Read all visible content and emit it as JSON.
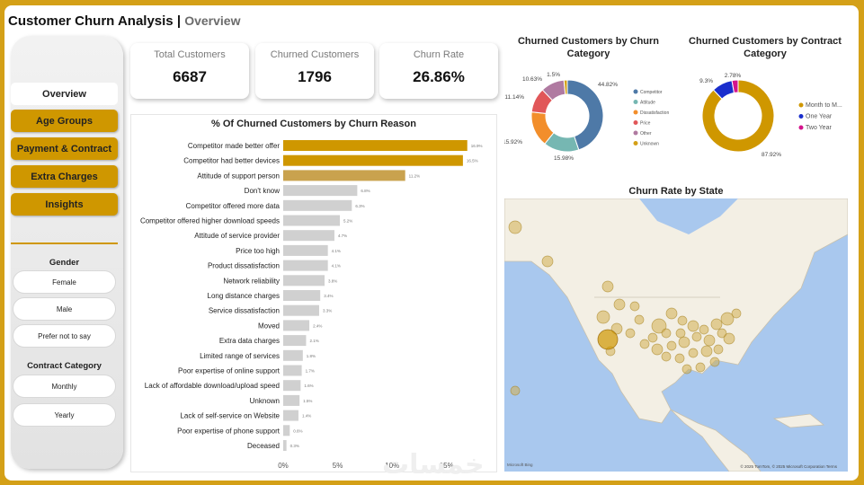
{
  "header": {
    "title": "Customer Churn Analysis",
    "separator": "|",
    "subtitle": "Overview"
  },
  "nav": {
    "overview": "Overview",
    "age_groups": "Age Groups",
    "payment_contract": "Payment & Contract",
    "extra_charges": "Extra Charges",
    "insights": "Insights"
  },
  "filters": {
    "gender_title": "Gender",
    "gender_options": [
      "Female",
      "Male",
      "Prefer not to say"
    ],
    "contract_title": "Contract Category",
    "contract_options": [
      "Monthly",
      "Yearly"
    ]
  },
  "kpis": [
    {
      "label": "Total Customers",
      "value": "6687"
    },
    {
      "label": "Churned Customers",
      "value": "1796"
    },
    {
      "label": "Churn Rate",
      "value": "26.86%"
    }
  ],
  "colors": {
    "gold": "#cf9700",
    "highlight": "#c9a24e",
    "gray_bar": "#d0d0d0",
    "water": "#a9c8ee",
    "land": "#f3efe4"
  },
  "chart_data": [
    {
      "type": "bar",
      "orientation": "horizontal",
      "title": "% Of Churned Customers by Churn Reason",
      "categories": [
        "Competitor made better offer",
        "Competitor had better devices",
        "Attitude of support person",
        "Don't know",
        "Competitor offered more data",
        "Competitor offered higher download speeds",
        "Attitude of service provider",
        "Price too high",
        "Product dissatisfaction",
        "Network reliability",
        "Long distance charges",
        "Service dissatisfaction",
        "Moved",
        "Extra data charges",
        "Limited range of services",
        "Poor expertise of online support",
        "Lack of affordable download/upload speed",
        "Unknown",
        "Lack of self-service on Website",
        "Poor expertise of phone support",
        "Deceased"
      ],
      "values": [
        16.9,
        16.5,
        11.2,
        6.8,
        6.3,
        5.2,
        4.7,
        4.1,
        4.1,
        3.8,
        3.4,
        3.3,
        2.4,
        2.1,
        1.8,
        1.7,
        1.6,
        1.5,
        1.4,
        0.6,
        0.3
      ],
      "data_labels": [
        "16.9%",
        "16.5%",
        "11.2%",
        "6.8%",
        "6.3%",
        "5.2%",
        "4.7%",
        "4.1%",
        "4.1%",
        "3.8%",
        "3.4%",
        "3.3%",
        "2.4%",
        "2.1%",
        "1.8%",
        "1.7%",
        "1.6%",
        "1.5%",
        "1.4%",
        "0.6%",
        "0.3%"
      ],
      "x_ticks": [
        "0%",
        "5%",
        "10%",
        "15%"
      ],
      "xlim": [
        0,
        17.5
      ]
    },
    {
      "type": "pie",
      "title": "Churned Customers by Churn Category",
      "categories": [
        "Competitor",
        "Attitude",
        "Dissatisfaction",
        "Price",
        "Other",
        "Unknown"
      ],
      "values": [
        44.82,
        15.98,
        15.92,
        11.14,
        10.63,
        1.5
      ],
      "labels": [
        "44.82%",
        "15.98%",
        "15.92%",
        "11.14%",
        "10.63%",
        "1.5%"
      ],
      "colors": [
        "#4e79a7",
        "#76b7b2",
        "#f28e2b",
        "#e15759",
        "#b07aa1",
        "#d4a017"
      ]
    },
    {
      "type": "pie",
      "title": "Churned Customers by Contract Category",
      "categories": [
        "Month to M...",
        "One Year",
        "Two Year"
      ],
      "values": [
        87.92,
        9.3,
        2.78
      ],
      "labels": [
        "87.92%",
        "9.3%",
        "2.78%"
      ],
      "colors": [
        "#cf9700",
        "#1a2ecc",
        "#d4148c"
      ]
    },
    {
      "type": "scatter",
      "title": "Churn Rate by State"
    }
  ],
  "map": {
    "attribution_left": "Microsoft Bing",
    "attribution_right": "© 2025 TomTom, © 2025 Microsoft Corporation Terms"
  },
  "watermark": "خمسات"
}
